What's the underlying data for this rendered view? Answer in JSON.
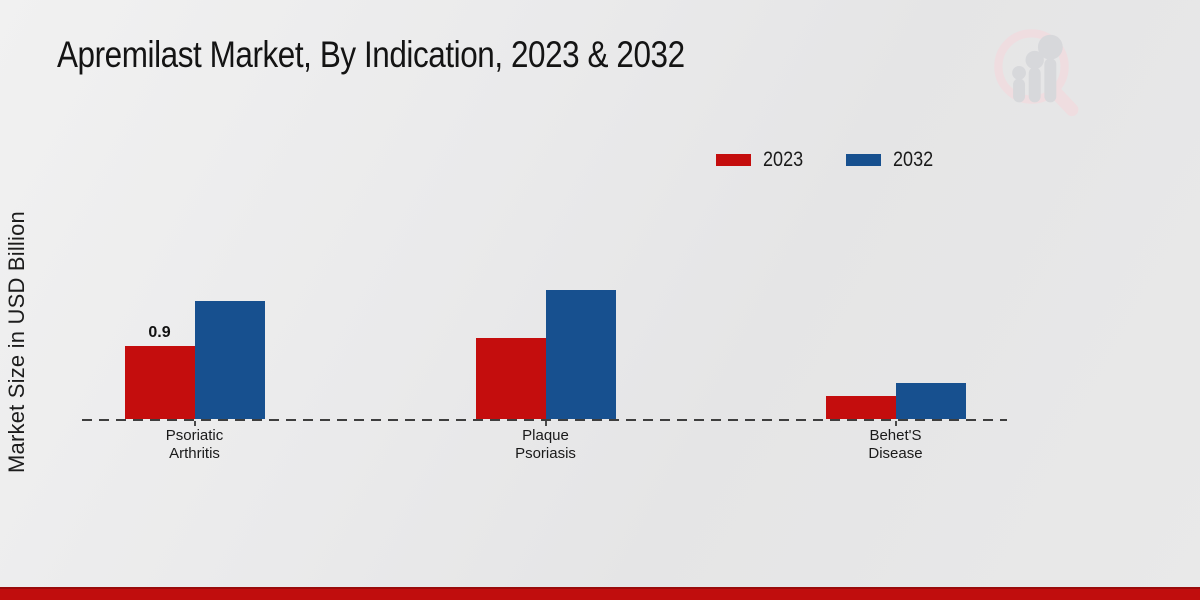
{
  "title": "Apremilast Market, By Indication, 2023 & 2032",
  "y_axis_label": "Market Size in USD Billion",
  "watermark_icon": "magnifier-bar-chart-logo",
  "colors": {
    "series_2023": "#c40d0d",
    "series_2032": "#17508f",
    "baseline": "#3e3e3e",
    "footer_bar": "#c00d0d",
    "footer_bar_edge": "#9a0b0b",
    "background": "#e9e9e9",
    "watermark_ring": "#efdde0",
    "watermark_bars": "#d7d8db",
    "text": "#161616"
  },
  "chart_data": {
    "type": "bar",
    "title": "Apremilast Market, By Indication, 2023 & 2032",
    "ylabel": "Market Size in USD Billion",
    "categories": [
      "Psoriatic Arthritis",
      "Plaque Psoriasis",
      "Behet'S Disease"
    ],
    "series": [
      {
        "name": "2023",
        "color": "#c40d0d",
        "values": [
          0.9,
          1.0,
          0.28
        ],
        "data_labels": [
          "0.9",
          "",
          ""
        ]
      },
      {
        "name": "2032",
        "color": "#17508f",
        "values": [
          1.45,
          1.58,
          0.44
        ],
        "data_labels": [
          "",
          "",
          ""
        ]
      }
    ],
    "ylim": [
      0,
      1.8
    ],
    "grid": false,
    "legend_position": "top-right",
    "baseline_style": "dashed",
    "y_axis_ticks_visible": false
  }
}
